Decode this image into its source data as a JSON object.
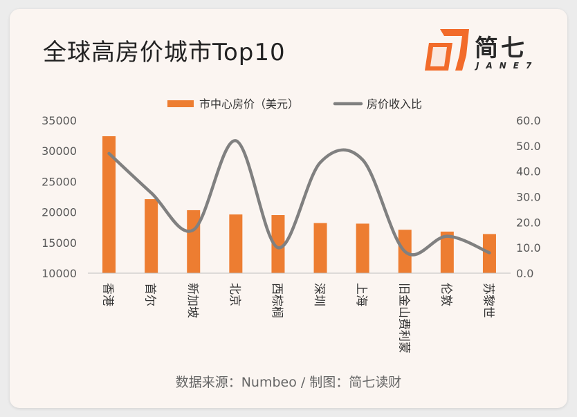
{
  "header": {
    "title": "全球高房价城市Top10",
    "brand": "简七",
    "brand_sub": "JANE7"
  },
  "footer": {
    "source": "数据来源：Numbeo / 制图：简七读财"
  },
  "colors": {
    "bar": "#ed7d31",
    "line": "#808080",
    "logo": "#f26b2a"
  },
  "icons": {
    "logo": "jane7-logo-icon"
  },
  "chart_data": {
    "type": "bar",
    "title": "全球高房价城市Top10",
    "categories": [
      "香港",
      "首尔",
      "新加坡",
      "北京",
      "西棕榈",
      "深圳",
      "上海",
      "旧金山费利蒙",
      "伦敦",
      "苏黎世"
    ],
    "series": [
      {
        "name": "市中心房价（美元）",
        "type": "bar",
        "axis": "left",
        "values": [
          32400,
          22100,
          20300,
          19600,
          19500,
          18200,
          18100,
          17100,
          16800,
          16400
        ]
      },
      {
        "name": "房价收入比",
        "type": "line",
        "axis": "right",
        "smooth": true,
        "values": [
          47.0,
          31.5,
          17.0,
          52.0,
          10.0,
          43.5,
          44.5,
          8.5,
          14.5,
          8.0
        ]
      }
    ],
    "y_left": {
      "min": 10000,
      "max": 35000,
      "ticks": [
        "10000",
        "15000",
        "20000",
        "25000",
        "30000",
        "35000"
      ]
    },
    "y_right": {
      "min": 0,
      "max": 60,
      "ticks": [
        "0.0",
        "10.0",
        "20.0",
        "30.0",
        "40.0",
        "50.0",
        "60.0"
      ]
    },
    "grid": false,
    "legend": "top-center"
  }
}
